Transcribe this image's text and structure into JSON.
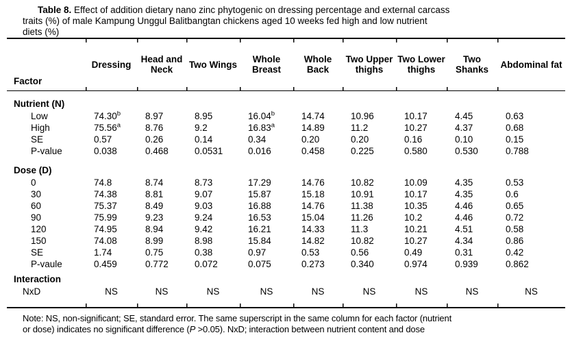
{
  "title": {
    "label": "Table 8.",
    "line1": "Effect of addition dietary nano zinc phytogenic on dressing percentage and external carcass",
    "line2": "traits (%) of male Kampung Unggul Balitbangtan chickens aged 10 weeks fed high and low nutrient",
    "line3": "diets (%)"
  },
  "table": {
    "factor_header": "Factor",
    "columns": [
      "Dressing",
      "Head and Neck",
      "Two Wings",
      "Whole Breast",
      "Whole Back",
      "Two Upper thighs",
      "Two Lower thighs",
      "Two Shanks",
      "Abdominal fat"
    ],
    "sections": [
      {
        "label": "Nutrient (N)",
        "rows": [
          {
            "label": "Low",
            "cells": [
              {
                "v": "74.30",
                "sup": "b"
              },
              "8.97",
              "8.95",
              {
                "v": "16.04",
                "sup": "b"
              },
              "14.74",
              "10.96",
              "10.17",
              "4.45",
              "0.63"
            ]
          },
          {
            "label": "High",
            "cells": [
              {
                "v": "75.56",
                "sup": "a"
              },
              "8.76",
              "9.2",
              {
                "v": "16.83",
                "sup": "a"
              },
              "14.89",
              "11.2",
              "10.27",
              "4.37",
              "0.68"
            ]
          },
          {
            "label": "SE",
            "cells": [
              "0.57",
              "0.26",
              "0.14",
              "0.34",
              "0.20",
              "0.20",
              "0.16",
              "0.10",
              "0.15"
            ]
          },
          {
            "label": "P-value",
            "cells": [
              "0.038",
              "0.468",
              "0.0531",
              "0.016",
              "0.458",
              "0.225",
              "0.580",
              "0.530",
              "0.788"
            ]
          }
        ]
      },
      {
        "label": "Dose (D)",
        "rows": [
          {
            "label": "0",
            "cells": [
              "74.8",
              "8.74",
              "8.73",
              "17.29",
              "14.76",
              "10.82",
              "10.09",
              "4.35",
              "0.53"
            ]
          },
          {
            "label": "30",
            "cells": [
              "74.38",
              "8.81",
              "9.07",
              "15.87",
              "15.18",
              "10.91",
              "10.17",
              "4.35",
              "0.6"
            ]
          },
          {
            "label": "60",
            "cells": [
              "75.37",
              "8.49",
              "9.03",
              "16.88",
              "14.76",
              "11.38",
              "10.35",
              "4.46",
              "0.65"
            ]
          },
          {
            "label": "90",
            "cells": [
              "75.99",
              "9.23",
              "9.24",
              "16.53",
              "15.04",
              "11.26",
              "10.2",
              "4.46",
              "0.72"
            ]
          },
          {
            "label": "120",
            "cells": [
              "74.95",
              "8.94",
              "9.42",
              "16.21",
              "14.33",
              "11.3",
              "10.21",
              "4.51",
              "0.58"
            ]
          },
          {
            "label": "150",
            "cells": [
              "74.08",
              "8.99",
              "8.98",
              "15.84",
              "14.82",
              "10.82",
              "10.27",
              "4.34",
              "0.86"
            ]
          },
          {
            "label": "SE",
            "cells": [
              "1.74",
              "0.75",
              "0.38",
              "0.97",
              "0.53",
              "0.56",
              "0.49",
              "0.31",
              "0.42"
            ]
          },
          {
            "label": "P-vaule",
            "cells": [
              "0.459",
              "0.772",
              "0.072",
              "0.075",
              "0.273",
              "0.340",
              "0.974",
              "0.939",
              "0.862"
            ]
          }
        ]
      },
      {
        "label": "Interaction",
        "rows": [
          {
            "label": "NxD",
            "ns": true,
            "cells": [
              "NS",
              "NS",
              "NS",
              "NS",
              "NS",
              "NS",
              "NS",
              "NS",
              "NS"
            ]
          }
        ]
      }
    ]
  },
  "note": {
    "line1": "Note: NS, non-significant; SE, standard error. The same superscript in the same column for each factor (nutrient",
    "line2_pre": "or dose) indicates no significant difference (",
    "line2_italic": "P",
    "line2_post": " >0.05). NxD; interaction between nutrient content and dose"
  }
}
